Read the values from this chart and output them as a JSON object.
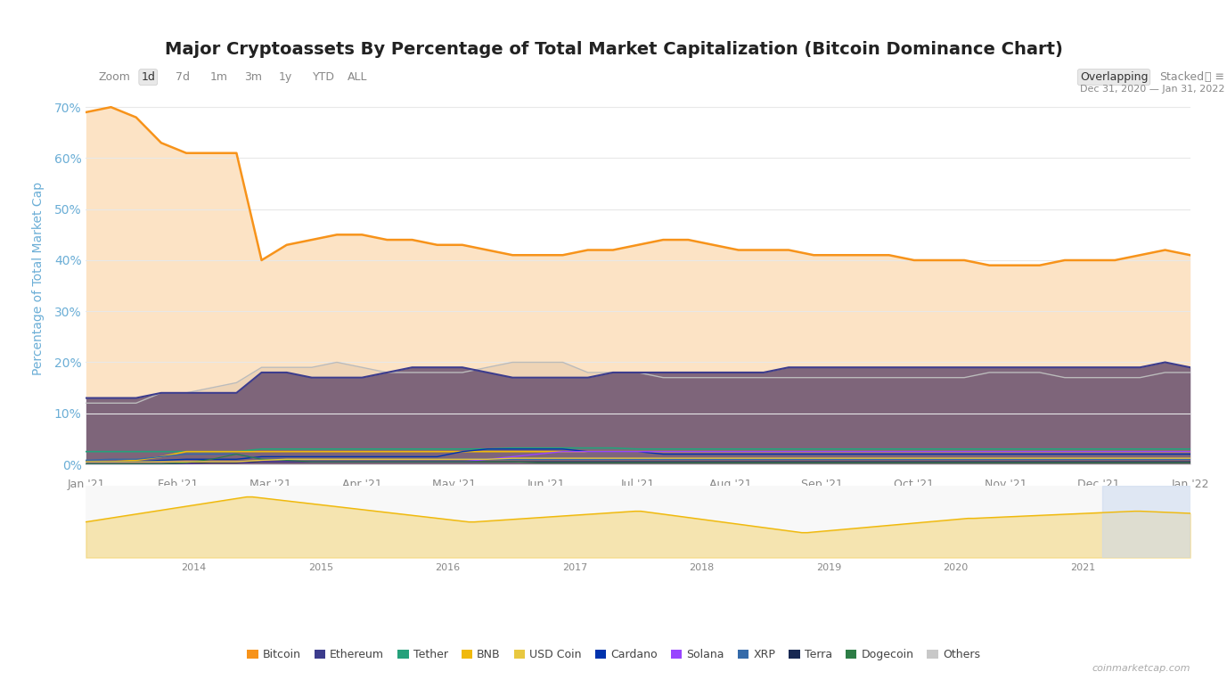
{
  "title": "Major Cryptoassets By Percentage of Total Market Capitalization (Bitcoin Dominance Chart)",
  "ylabel": "Percentage of Total Market Cap",
  "date_range": "Dec 31, 2020 — Jan 31, 2022",
  "zoom_label": "Zoom",
  "zoom_options": [
    "1d",
    "7d",
    "1m",
    "3m",
    "1y",
    "YTD",
    "ALL"
  ],
  "view_options": [
    "Overlapping",
    "Stacked"
  ],
  "yticks": [
    0,
    10,
    20,
    30,
    40,
    50,
    60,
    70
  ],
  "ylim": [
    -2,
    75
  ],
  "background_color": "#ffffff",
  "plot_bg_color": "#ffffff",
  "grid_color": "#e8e8e8",
  "watermark": "coinmarketcap.com",
  "legend_items": [
    {
      "label": "Bitcoin",
      "color": "#f7931a"
    },
    {
      "label": "Ethereum",
      "color": "#3c3c8d"
    },
    {
      "label": "Tether",
      "color": "#26a17b"
    },
    {
      "label": "BNB",
      "color": "#f0b90b"
    },
    {
      "label": "USD Coin",
      "color": "#e8c840"
    },
    {
      "label": "Cardano",
      "color": "#0033ad"
    },
    {
      "label": "Solana",
      "color": "#9945ff"
    },
    {
      "label": "XRP",
      "color": "#346aa9"
    },
    {
      "label": "Terra",
      "color": "#172852"
    },
    {
      "label": "Dogecoin",
      "color": "#2d7d46"
    },
    {
      "label": "Others",
      "color": "#c8c8c8"
    }
  ],
  "xtick_labels": [
    "Jan '21",
    "Feb '21",
    "Mar '21",
    "Apr '21",
    "May '21",
    "Jun '21",
    "Jul '21",
    "Aug '21",
    "Sep '21",
    "Oct '21",
    "Nov '21",
    "Dec '21",
    "Jan '22"
  ],
  "bitcoin_data": [
    69,
    70,
    68,
    63,
    61,
    61,
    61,
    40,
    43,
    44,
    45,
    45,
    44,
    44,
    43,
    43,
    42,
    41,
    41,
    41,
    42,
    42,
    43,
    44,
    44,
    43,
    42,
    42,
    42,
    41,
    41,
    41,
    41,
    40,
    40,
    40,
    39,
    39,
    39,
    40,
    40,
    40,
    41,
    42,
    41
  ],
  "ethereum_data": [
    13,
    13,
    13,
    14,
    14,
    14,
    14,
    18,
    18,
    17,
    17,
    17,
    18,
    19,
    19,
    19,
    18,
    17,
    17,
    17,
    17,
    18,
    18,
    18,
    18,
    18,
    18,
    18,
    19,
    19,
    19,
    19,
    19,
    19,
    19,
    19,
    19,
    19,
    19,
    19,
    19,
    19,
    19,
    20,
    19
  ],
  "others_data": [
    12,
    12,
    12,
    14,
    14,
    15,
    16,
    19,
    19,
    19,
    20,
    19,
    18,
    18,
    18,
    18,
    19,
    20,
    20,
    20,
    18,
    18,
    18,
    17,
    17,
    17,
    17,
    17,
    17,
    17,
    17,
    17,
    17,
    17,
    17,
    17,
    18,
    18,
    18,
    17,
    17,
    17,
    17,
    18,
    18
  ],
  "tether_data": [
    2.5,
    2.5,
    2.5,
    2.5,
    2.5,
    2.5,
    2.5,
    3,
    3,
    3,
    3,
    3,
    3,
    3,
    3,
    3,
    3,
    3.2,
    3.2,
    3.2,
    3.2,
    3.2,
    3,
    3,
    3,
    3,
    3,
    3,
    3,
    3,
    3,
    3,
    3,
    3,
    3,
    3,
    3,
    3,
    3,
    3,
    3,
    3,
    3,
    3,
    3
  ],
  "bnb_data": [
    0.5,
    0.5,
    0.8,
    1.5,
    2.5,
    2.5,
    2.5,
    2.5,
    2.5,
    2.5,
    2.5,
    2.5,
    2.5,
    2.5,
    2.5,
    2.5,
    2.5,
    2.5,
    2.5,
    2.5,
    2.5,
    2.5,
    2.5,
    2.5,
    2.5,
    2.5,
    2.5,
    2.5,
    2.5,
    2.5,
    2.5,
    2.5,
    2.5,
    2.5,
    2.5,
    2.5,
    2.5,
    2.5,
    2.5,
    2.5,
    2.5,
    2.5,
    2.5,
    2.5,
    2.5
  ],
  "usdcoin_data": [
    0.5,
    0.5,
    0.5,
    0.5,
    0.5,
    0.5,
    0.5,
    0.8,
    1,
    1,
    1,
    1,
    1,
    1,
    1,
    1,
    1,
    1.2,
    1.2,
    1.2,
    1.2,
    1.2,
    1.2,
    1.2,
    1.2,
    1.2,
    1.2,
    1.2,
    1.2,
    1.2,
    1.2,
    1.2,
    1.2,
    1.2,
    1.2,
    1.2,
    1.2,
    1.2,
    1.2,
    1.2,
    1.2,
    1.2,
    1.2,
    1.2,
    1.2
  ],
  "cardano_data": [
    0.5,
    0.5,
    0.5,
    0.8,
    1,
    1,
    1,
    1.5,
    1.5,
    1.5,
    1.5,
    1.5,
    1.5,
    1.5,
    1.5,
    2.5,
    3,
    3,
    3,
    3,
    2.5,
    2.5,
    2.5,
    2,
    2,
    2,
    2,
    2,
    2,
    2,
    2,
    2,
    2,
    2,
    2,
    2,
    2,
    2,
    2,
    2,
    2,
    2,
    2,
    2,
    2
  ],
  "solana_data": [
    0.1,
    0.1,
    0.1,
    0.1,
    0.2,
    0.3,
    0.3,
    0.5,
    0.5,
    0.5,
    0.5,
    0.5,
    0.5,
    0.5,
    0.5,
    0.5,
    1,
    1.5,
    2,
    2.5,
    2.5,
    2.5,
    2.5,
    2.5,
    2.5,
    2.5,
    2.5,
    2.5,
    2.5,
    2.5,
    2.5,
    2.5,
    2.5,
    2.5,
    2.5,
    2.5,
    2.5,
    2.5,
    2.5,
    2.5,
    2.5,
    2.5,
    2.5,
    2.5,
    2.5
  ],
  "xrp_data": [
    0.8,
    1,
    1,
    1.5,
    2,
    2,
    2,
    1,
    1,
    1,
    1,
    1,
    1,
    1,
    1,
    1,
    1,
    1,
    1,
    1,
    1,
    1,
    1,
    1,
    1,
    1,
    1,
    1,
    1,
    1,
    1,
    1,
    1,
    1,
    1,
    1,
    1,
    1,
    1,
    1,
    1,
    1,
    1,
    1,
    1
  ],
  "terra_data": [
    0.1,
    0.1,
    0.1,
    0.1,
    0.2,
    0.3,
    0.3,
    0.5,
    0.5,
    0.5,
    0.5,
    0.5,
    0.5,
    0.5,
    0.5,
    0.5,
    0.5,
    0.5,
    0.5,
    0.5,
    0.5,
    0.5,
    0.5,
    0.5,
    0.5,
    0.5,
    0.5,
    0.5,
    0.5,
    0.5,
    0.5,
    0.5,
    0.5,
    0.5,
    0.5,
    0.5,
    0.5,
    0.5,
    0.5,
    0.5,
    0.5,
    0.5,
    0.5,
    0.5,
    0.5
  ],
  "dogecoin_data": [
    0.1,
    0.1,
    0.1,
    0.1,
    0.3,
    1,
    2,
    1,
    0.8,
    0.5,
    0.5,
    0.5,
    0.5,
    0.5,
    0.5,
    0.5,
    0.5,
    0.5,
    0.3,
    0.3,
    0.3,
    0.3,
    0.3,
    0.3,
    0.3,
    0.3,
    0.3,
    0.3,
    0.3,
    0.3,
    0.3,
    0.3,
    0.3,
    0.3,
    0.3,
    0.3,
    0.3,
    0.3,
    0.3,
    0.3,
    0.3,
    0.3,
    0.3,
    0.3,
    0.3
  ],
  "mini_chart_color": "#f0b90b",
  "mini_chart_bg": "#f5f5f5",
  "title_fontsize": 14,
  "axis_label_color": "#6baed6",
  "tick_color": "#888888",
  "grid_alpha": 0.5
}
